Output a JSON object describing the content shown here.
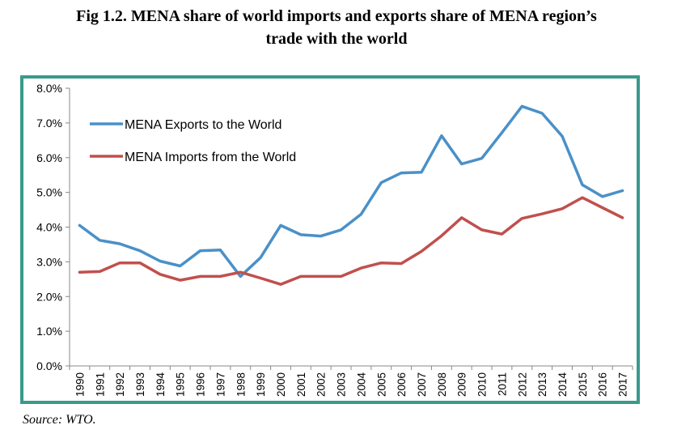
{
  "title_lines": [
    "Fig 1.2. MENA share of world imports and exports share of MENA region’s",
    "trade with the world"
  ],
  "source": "Source: WTO.",
  "chart_data": {
    "type": "line",
    "title": "Fig 1.2. MENA share of world imports and exports share of MENA region’s trade with the world",
    "xlabel": "",
    "ylabel": "",
    "x": [
      "1990",
      "1991",
      "1992",
      "1993",
      "1994",
      "1995",
      "1996",
      "1997",
      "1998",
      "1999",
      "2000",
      "2001",
      "2002",
      "2003",
      "2004",
      "2005",
      "2006",
      "2007",
      "2008",
      "2009",
      "2010",
      "2011",
      "2012",
      "2013",
      "2014",
      "2015",
      "2016",
      "2017"
    ],
    "y_ticks": [
      "0.0%",
      "1.0%",
      "2.0%",
      "3.0%",
      "4.0%",
      "5.0%",
      "6.0%",
      "7.0%",
      "8.0%"
    ],
    "ylim": [
      0,
      8
    ],
    "grid": false,
    "legend_position": "top-left",
    "series": [
      {
        "name": "MENA Exports to the World",
        "color": "#4a90c8",
        "values": [
          4.05,
          3.62,
          3.52,
          3.32,
          3.02,
          2.88,
          3.32,
          3.34,
          2.58,
          3.12,
          4.05,
          3.78,
          3.74,
          3.92,
          4.37,
          5.28,
          5.56,
          5.58,
          6.63,
          5.82,
          5.98,
          6.72,
          7.48,
          7.28,
          6.62,
          5.22,
          4.88,
          5.05
        ]
      },
      {
        "name": "MENA Imports from the World",
        "color": "#c0504d",
        "values": [
          2.7,
          2.72,
          2.97,
          2.97,
          2.64,
          2.47,
          2.58,
          2.58,
          2.7,
          2.53,
          2.35,
          2.58,
          2.58,
          2.58,
          2.82,
          2.97,
          2.95,
          3.3,
          3.75,
          4.27,
          3.92,
          3.8,
          4.25,
          4.38,
          4.53,
          4.85,
          4.56,
          4.27
        ]
      }
    ]
  }
}
